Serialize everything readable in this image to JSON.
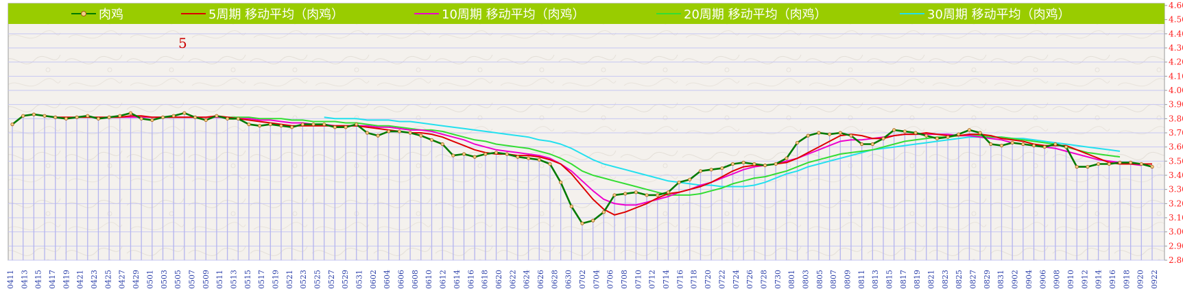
{
  "chart_data": {
    "type": "line",
    "title": "",
    "xlabel": "",
    "ylabel": "",
    "ylim": [
      2.8,
      4.6
    ],
    "yticks": [
      "2.80",
      "2.90",
      "3.00",
      "3.10",
      "3.20",
      "3.30",
      "3.40",
      "3.50",
      "3.60",
      "3.70",
      "3.80",
      "3.90",
      "4.00",
      "4.10",
      "4.20",
      "4.30",
      "4.40",
      "4.50",
      "4.60"
    ],
    "x_labels": [
      "0411",
      "0413",
      "0415",
      "0417",
      "0419",
      "0421",
      "0423",
      "0425",
      "0427",
      "0429",
      "0501",
      "0503",
      "0505",
      "0507",
      "0509",
      "0511",
      "0513",
      "0515",
      "0517",
      "0519",
      "0521",
      "0523",
      "0525",
      "0527",
      "0529",
      "0531",
      "0602",
      "0604",
      "0606",
      "0608",
      "0610",
      "0612",
      "0614",
      "0616",
      "0618",
      "0620",
      "0622",
      "0624",
      "0626",
      "0628",
      "0630",
      "0702",
      "0704",
      "0706",
      "0708",
      "0710",
      "0712",
      "0714",
      "0716",
      "0718",
      "0720",
      "0722",
      "0724",
      "0726",
      "0728",
      "0730",
      "0801",
      "0803",
      "0805",
      "0807",
      "0809",
      "0811",
      "0813",
      "0815",
      "0817",
      "0819",
      "0821",
      "0823",
      "0825",
      "0827",
      "0829",
      "0831",
      "0902",
      "0904",
      "0906",
      "0908",
      "0910",
      "0912",
      "0914",
      "0916",
      "0918",
      "0920",
      "0922"
    ],
    "annotation": "5",
    "series": [
      {
        "name": "肉鸡",
        "color": "#007a00",
        "marker": true,
        "values": [
          3.76,
          3.82,
          3.83,
          3.82,
          3.81,
          3.8,
          3.81,
          3.82,
          3.8,
          3.81,
          3.82,
          3.84,
          3.8,
          3.79,
          3.81,
          3.82,
          3.84,
          3.81,
          3.79,
          3.82,
          3.8,
          3.8,
          3.76,
          3.75,
          3.76,
          3.75,
          3.74,
          3.76,
          3.76,
          3.76,
          3.74,
          3.74,
          3.76,
          3.7,
          3.68,
          3.71,
          3.71,
          3.7,
          3.68,
          3.65,
          3.62,
          3.54,
          3.55,
          3.53,
          3.55,
          3.56,
          3.55,
          3.53,
          3.52,
          3.51,
          3.48,
          3.35,
          3.18,
          3.06,
          3.08,
          3.14,
          3.26,
          3.27,
          3.28,
          3.26,
          3.26,
          3.28,
          3.35,
          3.37,
          3.43,
          3.44,
          3.45,
          3.48,
          3.49,
          3.48,
          3.47,
          3.48,
          3.52,
          3.63,
          3.68,
          3.7,
          3.69,
          3.7,
          3.68,
          3.62,
          3.62,
          3.66,
          3.72,
          3.71,
          3.7,
          3.68,
          3.66,
          3.67,
          3.69,
          3.72,
          3.7,
          3.62,
          3.61,
          3.63,
          3.62,
          3.61,
          3.6,
          3.62,
          3.6,
          3.46,
          3.46,
          3.48,
          3.48,
          3.49,
          3.49,
          3.48,
          3.46
        ]
      },
      {
        "name": "5周期 移动平均（肉鸡）",
        "color": "#dd0000",
        "marker": false,
        "values": [
          null,
          null,
          null,
          null,
          3.81,
          3.81,
          3.81,
          3.81,
          3.81,
          3.81,
          3.81,
          3.82,
          3.82,
          3.81,
          3.81,
          3.81,
          3.81,
          3.81,
          3.81,
          3.82,
          3.81,
          3.8,
          3.79,
          3.78,
          3.77,
          3.76,
          3.75,
          3.75,
          3.75,
          3.75,
          3.75,
          3.75,
          3.75,
          3.74,
          3.73,
          3.72,
          3.71,
          3.7,
          3.7,
          3.69,
          3.67,
          3.64,
          3.61,
          3.58,
          3.56,
          3.55,
          3.55,
          3.54,
          3.54,
          3.53,
          3.51,
          3.48,
          3.41,
          3.32,
          3.23,
          3.16,
          3.12,
          3.14,
          3.17,
          3.2,
          3.24,
          3.27,
          3.28,
          3.3,
          3.32,
          3.35,
          3.39,
          3.43,
          3.46,
          3.47,
          3.47,
          3.48,
          3.49,
          3.52,
          3.56,
          3.6,
          3.64,
          3.68,
          3.69,
          3.68,
          3.66,
          3.66,
          3.68,
          3.69,
          3.69,
          3.7,
          3.69,
          3.68,
          3.68,
          3.69,
          3.69,
          3.68,
          3.66,
          3.65,
          3.64,
          3.62,
          3.61,
          3.61,
          3.61,
          3.58,
          3.55,
          3.52,
          3.49,
          3.48,
          3.48,
          3.48,
          3.48
        ]
      },
      {
        "name": "10周期 移动平均（肉鸡）",
        "color": "#ee00cc",
        "marker": false,
        "values": [
          null,
          null,
          null,
          null,
          null,
          null,
          null,
          null,
          null,
          3.81,
          3.81,
          3.81,
          3.81,
          3.81,
          3.81,
          3.81,
          3.81,
          3.81,
          3.81,
          3.81,
          3.81,
          3.8,
          3.8,
          3.79,
          3.79,
          3.78,
          3.77,
          3.77,
          3.76,
          3.76,
          3.75,
          3.75,
          3.75,
          3.75,
          3.74,
          3.74,
          3.73,
          3.72,
          3.72,
          3.71,
          3.69,
          3.67,
          3.65,
          3.62,
          3.6,
          3.58,
          3.57,
          3.56,
          3.55,
          3.54,
          3.52,
          3.48,
          3.43,
          3.36,
          3.29,
          3.23,
          3.2,
          3.19,
          3.19,
          3.21,
          3.23,
          3.25,
          3.28,
          3.3,
          3.33,
          3.35,
          3.38,
          3.41,
          3.44,
          3.46,
          3.47,
          3.48,
          3.5,
          3.52,
          3.55,
          3.58,
          3.61,
          3.64,
          3.65,
          3.65,
          3.66,
          3.67,
          3.68,
          3.69,
          3.69,
          3.69,
          3.69,
          3.69,
          3.68,
          3.68,
          3.67,
          3.66,
          3.65,
          3.63,
          3.62,
          3.61,
          3.6,
          3.59,
          3.57,
          3.55,
          3.53,
          3.51,
          3.5,
          3.49,
          3.48,
          3.47
        ]
      },
      {
        "name": "20周期 移动平均（肉鸡）",
        "color": "#33dd33",
        "marker": false,
        "values": [
          null,
          null,
          null,
          null,
          null,
          null,
          null,
          null,
          null,
          null,
          null,
          null,
          null,
          null,
          null,
          null,
          null,
          null,
          null,
          3.81,
          3.81,
          3.81,
          3.81,
          3.8,
          3.8,
          3.8,
          3.79,
          3.79,
          3.78,
          3.78,
          3.78,
          3.77,
          3.77,
          3.76,
          3.75,
          3.75,
          3.74,
          3.73,
          3.72,
          3.72,
          3.71,
          3.69,
          3.67,
          3.65,
          3.64,
          3.62,
          3.61,
          3.6,
          3.59,
          3.57,
          3.55,
          3.52,
          3.48,
          3.43,
          3.4,
          3.38,
          3.36,
          3.34,
          3.32,
          3.3,
          3.28,
          3.26,
          3.26,
          3.26,
          3.27,
          3.29,
          3.31,
          3.34,
          3.36,
          3.38,
          3.39,
          3.41,
          3.43,
          3.46,
          3.49,
          3.51,
          3.53,
          3.55,
          3.56,
          3.57,
          3.58,
          3.6,
          3.62,
          3.64,
          3.65,
          3.66,
          3.67,
          3.67,
          3.68,
          3.68,
          3.68,
          3.67,
          3.67,
          3.66,
          3.65,
          3.64,
          3.63,
          3.62,
          3.6,
          3.58,
          3.56,
          3.55,
          3.54,
          3.53
        ]
      },
      {
        "name": "30周期 移动平均（肉鸡）",
        "color": "#22e0ee",
        "marker": false,
        "values": [
          null,
          null,
          null,
          null,
          null,
          null,
          null,
          null,
          null,
          null,
          null,
          null,
          null,
          null,
          null,
          null,
          null,
          null,
          null,
          null,
          null,
          null,
          null,
          null,
          null,
          null,
          null,
          null,
          null,
          3.81,
          3.8,
          3.8,
          3.8,
          3.79,
          3.79,
          3.79,
          3.78,
          3.78,
          3.77,
          3.76,
          3.75,
          3.74,
          3.73,
          3.72,
          3.71,
          3.7,
          3.69,
          3.68,
          3.67,
          3.65,
          3.64,
          3.62,
          3.59,
          3.55,
          3.51,
          3.48,
          3.46,
          3.44,
          3.42,
          3.4,
          3.38,
          3.36,
          3.35,
          3.34,
          3.33,
          3.33,
          3.32,
          3.32,
          3.32,
          3.33,
          3.35,
          3.38,
          3.41,
          3.43,
          3.46,
          3.48,
          3.5,
          3.52,
          3.54,
          3.56,
          3.58,
          3.59,
          3.6,
          3.61,
          3.62,
          3.63,
          3.64,
          3.65,
          3.66,
          3.67,
          3.67,
          3.67,
          3.67,
          3.66,
          3.66,
          3.65,
          3.64,
          3.63,
          3.62,
          3.61,
          3.6,
          3.59,
          3.58,
          3.57
        ]
      }
    ]
  },
  "colors": {
    "legend_bg": "#99cc00",
    "grid": "#c6c6f2",
    "dropline": "#b4b4ee",
    "axis_text": "#ff2020",
    "date_text": "#2a3ea8"
  }
}
